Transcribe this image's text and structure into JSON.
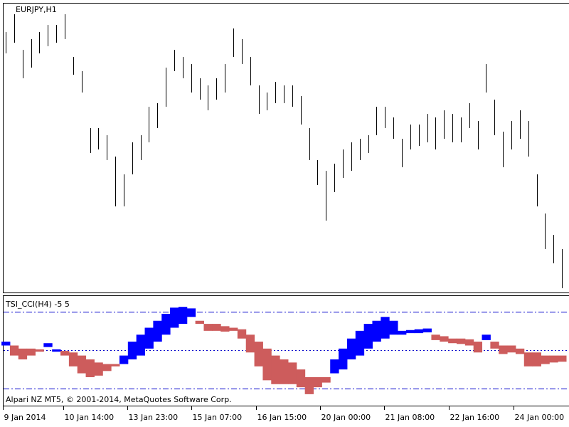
{
  "chart_data": [
    {
      "type": "hlbar",
      "title": "EURJPY,H1",
      "color": "#000000",
      "ylim": [
        140.4,
        144.46
      ],
      "high": [
        144.05,
        144.3,
        143.8,
        143.95,
        144.05,
        144.15,
        144.15,
        144.3,
        143.7,
        143.5,
        142.7,
        142.7,
        142.6,
        142.3,
        142.05,
        142.5,
        142.6,
        143,
        143.05,
        143.55,
        143.8,
        143.7,
        143.6,
        143.4,
        143.3,
        143.4,
        143.6,
        144.1,
        143.95,
        143.7,
        143.3,
        143.2,
        143.35,
        143.3,
        143.3,
        143.15,
        142.7,
        142.25,
        142.1,
        142.2,
        142.4,
        142.5,
        142.55,
        142.6,
        143,
        143,
        142.85,
        142.55,
        142.75,
        142.75,
        142.9,
        142.85,
        142.95,
        142.9,
        142.85,
        143.05,
        142.8,
        143.6,
        143.1,
        142.65,
        142.8,
        142.95,
        142.8,
        142.05,
        141.5,
        141.2,
        141.0
      ],
      "low": [
        143.75,
        143.9,
        143.4,
        143.55,
        143.75,
        143.85,
        143.9,
        143.95,
        143.45,
        143.2,
        142.35,
        142.4,
        142.25,
        141.6,
        141.6,
        142.05,
        142.25,
        142.5,
        142.7,
        143,
        143.5,
        143.4,
        143.2,
        143.1,
        142.95,
        143.1,
        143.2,
        143.7,
        143.6,
        143.3,
        142.9,
        142.95,
        143.05,
        143.05,
        143,
        142.75,
        142.25,
        141.9,
        141.4,
        141.8,
        142,
        142.1,
        142.25,
        142.35,
        142.6,
        142.7,
        142.55,
        142.15,
        142.4,
        142.45,
        142.5,
        142.4,
        142.55,
        142.5,
        142.5,
        142.7,
        142.4,
        143.2,
        142.6,
        142.15,
        142.4,
        142.55,
        142.3,
        141.6,
        141,
        140.8,
        140.45
      ]
    },
    {
      "type": "range-histogram",
      "title": "TSI_CCI(H4) -5 5",
      "ylim": [
        -7,
        7
      ],
      "levels": [
        5,
        -5
      ],
      "midline": 0,
      "colors": {
        "up": "#0000ff",
        "down": "#cd5c5c"
      },
      "level_color": "#0000cc",
      "upper": [
        1.1,
        0.6,
        0.2,
        0.2,
        0.1,
        0.9,
        0.1,
        -0.1,
        -0.3,
        -0.7,
        -1.2,
        -1.6,
        -1.8,
        -1.8,
        -0.7,
        1.1,
        2.0,
        2.9,
        3.8,
        4.7,
        5.5,
        5.6,
        5.4,
        3.8,
        3.4,
        3.4,
        3.1,
        2.9,
        2.7,
        2.0,
        1.1,
        0.2,
        -0.7,
        -1.2,
        -1.6,
        -2.5,
        -3.5,
        -3.5,
        -3.5,
        -1.2,
        0.2,
        1.5,
        2.5,
        3.4,
        3.8,
        4.3,
        3.8,
        2.5,
        2.6,
        2.7,
        2.8,
        2.0,
        1.8,
        1.5,
        1.5,
        1.4,
        1.1,
        2.0,
        1.1,
        0.6,
        0.6,
        0.2,
        -0.3,
        -0.3,
        -0.7,
        -0.7,
        -0.7
      ],
      "lower": [
        0.6,
        -0.7,
        -1.2,
        -0.7,
        -0.2,
        0.4,
        -0.2,
        -0.7,
        -2.1,
        -3.0,
        -3.5,
        -3.3,
        -2.7,
        -2.1,
        -1.8,
        -1.2,
        -0.7,
        0.2,
        1.1,
        2.0,
        2.9,
        3.4,
        4.3,
        3.4,
        2.5,
        2.5,
        2.4,
        2.5,
        1.5,
        -0.3,
        -2.1,
        -3.9,
        -4.4,
        -4.4,
        -4.4,
        -4.8,
        -5.7,
        -4.8,
        -4.2,
        -3.0,
        -2.5,
        -1.2,
        -0.7,
        0.2,
        1.1,
        1.5,
        2.0,
        2.0,
        2.2,
        2.2,
        2.3,
        1.3,
        1.1,
        0.9,
        0.8,
        0.6,
        -0.3,
        1.3,
        0.2,
        -0.5,
        -0.3,
        -0.5,
        -2.1,
        -2.1,
        -1.8,
        -1.6,
        -1.5
      ],
      "up": [
        true,
        false,
        false,
        false,
        false,
        true,
        true,
        false,
        false,
        false,
        false,
        false,
        false,
        false,
        true,
        true,
        true,
        true,
        true,
        true,
        true,
        true,
        true,
        false,
        false,
        false,
        false,
        false,
        false,
        false,
        false,
        false,
        false,
        false,
        false,
        false,
        false,
        false,
        false,
        true,
        true,
        true,
        true,
        true,
        true,
        true,
        true,
        true,
        true,
        true,
        true,
        false,
        false,
        false,
        false,
        false,
        false,
        true,
        false,
        false,
        false,
        false,
        false,
        false,
        false,
        false,
        false
      ],
      "copyright": "Alpari NZ MT5, © 2001-2014, MetaQuotes Software Corp.",
      "xticks": [
        {
          "value": 0,
          "label": "9 Jan 2014"
        },
        {
          "value": 7.2,
          "label": "10 Jan 14:00"
        },
        {
          "value": 14.8,
          "label": "13 Jan 23:00"
        },
        {
          "value": 22.4,
          "label": "15 Jan 07:00"
        },
        {
          "value": 30,
          "label": "16 Jan 15:00"
        },
        {
          "value": 37.6,
          "label": "20 Jan 00:00"
        },
        {
          "value": 45.2,
          "label": "21 Jan 08:00"
        },
        {
          "value": 52.9,
          "label": "22 Jan 16:00"
        },
        {
          "value": 60.6,
          "label": "24 Jan 00:00"
        }
      ]
    }
  ]
}
